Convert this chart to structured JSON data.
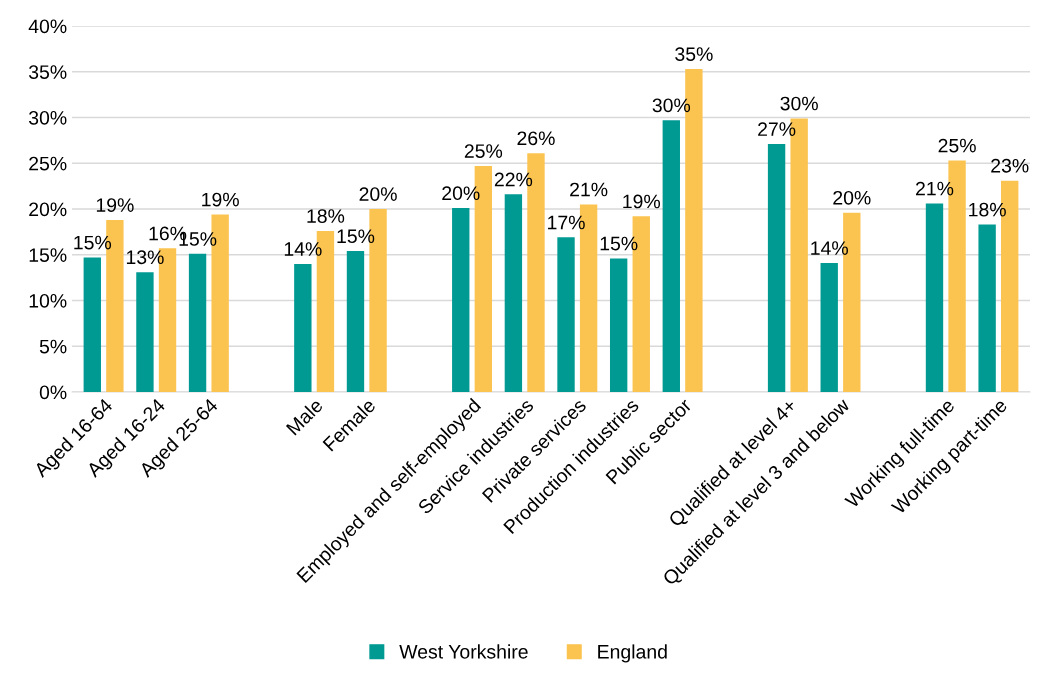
{
  "chart_data": {
    "type": "bar",
    "categories": [
      "Aged 16-64",
      "Aged 16-24",
      "Aged 25-64",
      null,
      "Male",
      "Female",
      null,
      "Employed and self-employed",
      "Service industries",
      "Private services",
      "Production industries",
      "Public sector",
      null,
      "Qualified at level 4+",
      "Qualified at level 3 and below",
      null,
      "Working full-time",
      "Working part-time"
    ],
    "series": [
      {
        "name": "West Yorkshire",
        "color": "#009a93",
        "values": [
          14.7,
          13.1,
          15.1,
          null,
          14.0,
          15.4,
          null,
          20.1,
          21.6,
          16.9,
          14.6,
          29.7,
          null,
          27.1,
          14.1,
          null,
          20.6,
          18.3
        ],
        "value_labels": [
          "15%",
          "13%",
          "15%",
          null,
          "14%",
          "15%",
          null,
          "20%",
          "22%",
          "17%",
          "15%",
          "30%",
          null,
          "27%",
          "14%",
          null,
          "21%",
          "18%"
        ]
      },
      {
        "name": "England",
        "color": "#fbc34f",
        "values": [
          18.8,
          15.7,
          19.4,
          null,
          17.6,
          20.0,
          null,
          24.7,
          26.1,
          20.5,
          19.2,
          35.3,
          null,
          29.9,
          19.6,
          null,
          25.3,
          23.1
        ],
        "value_labels": [
          "19%",
          "16%",
          "19%",
          null,
          "18%",
          "20%",
          null,
          "25%",
          "26%",
          "21%",
          "19%",
          "35%",
          null,
          "30%",
          "20%",
          null,
          "25%",
          "23%"
        ]
      }
    ],
    "ylim": [
      0,
      40
    ],
    "yticks": [
      {
        "value": 0,
        "label": "0%"
      },
      {
        "value": 5,
        "label": "5%"
      },
      {
        "value": 10,
        "label": "10%"
      },
      {
        "value": 15,
        "label": "15%"
      },
      {
        "value": 20,
        "label": "20%"
      },
      {
        "value": 25,
        "label": "25%"
      },
      {
        "value": 30,
        "label": "30%"
      },
      {
        "value": 35,
        "label": "35%"
      },
      {
        "value": 40,
        "label": "40%"
      }
    ],
    "grid": "y",
    "legend": "bottom"
  }
}
